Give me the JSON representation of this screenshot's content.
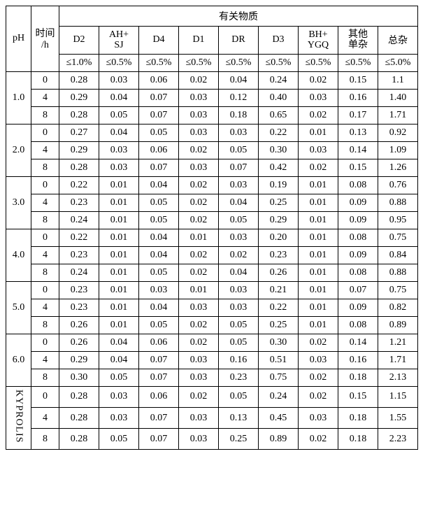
{
  "header": {
    "ph": "pH",
    "time": "时间/h",
    "group": "有关物质",
    "cols": [
      "D2",
      "AH+SJ",
      "D4",
      "D1",
      "DR",
      "D3",
      "BH+YGQ",
      "其他单杂",
      "总杂"
    ],
    "limits": [
      "≤1.0%",
      "≤0.5%",
      "≤0.5%",
      "≤0.5%",
      "≤0.5%",
      "≤0.5%",
      "≤0.5%",
      "≤0.5%",
      "≤5.0%"
    ]
  },
  "groups": [
    {
      "label": "1.0",
      "rows": [
        {
          "t": "0",
          "v": [
            "0.28",
            "0.03",
            "0.06",
            "0.02",
            "0.04",
            "0.24",
            "0.02",
            "0.15",
            "1.1"
          ]
        },
        {
          "t": "4",
          "v": [
            "0.29",
            "0.04",
            "0.07",
            "0.03",
            "0.12",
            "0.40",
            "0.03",
            "0.16",
            "1.40"
          ]
        },
        {
          "t": "8",
          "v": [
            "0.28",
            "0.05",
            "0.07",
            "0.03",
            "0.18",
            "0.65",
            "0.02",
            "0.17",
            "1.71"
          ]
        }
      ]
    },
    {
      "label": "2.0",
      "rows": [
        {
          "t": "0",
          "v": [
            "0.27",
            "0.04",
            "0.05",
            "0.03",
            "0.03",
            "0.22",
            "0.01",
            "0.13",
            "0.92"
          ]
        },
        {
          "t": "4",
          "v": [
            "0.29",
            "0.03",
            "0.06",
            "0.02",
            "0.05",
            "0.30",
            "0.03",
            "0.14",
            "1.09"
          ]
        },
        {
          "t": "8",
          "v": [
            "0.28",
            "0.03",
            "0.07",
            "0.03",
            "0.07",
            "0.42",
            "0.02",
            "0.15",
            "1.26"
          ]
        }
      ]
    },
    {
      "label": "3.0",
      "rows": [
        {
          "t": "0",
          "v": [
            "0.22",
            "0.01",
            "0.04",
            "0.02",
            "0.03",
            "0.19",
            "0.01",
            "0.08",
            "0.76"
          ]
        },
        {
          "t": "4",
          "v": [
            "0.23",
            "0.01",
            "0.05",
            "0.02",
            "0.04",
            "0.25",
            "0.01",
            "0.09",
            "0.88"
          ]
        },
        {
          "t": "8",
          "v": [
            "0.24",
            "0.01",
            "0.05",
            "0.02",
            "0.05",
            "0.29",
            "0.01",
            "0.09",
            "0.95"
          ]
        }
      ]
    },
    {
      "label": "4.0",
      "rows": [
        {
          "t": "0",
          "v": [
            "0.22",
            "0.01",
            "0.04",
            "0.01",
            "0.03",
            "0.20",
            "0.01",
            "0.08",
            "0.75"
          ]
        },
        {
          "t": "4",
          "v": [
            "0.23",
            "0.01",
            "0.04",
            "0.02",
            "0.02",
            "0.23",
            "0.01",
            "0.09",
            "0.84"
          ]
        },
        {
          "t": "8",
          "v": [
            "0.24",
            "0.01",
            "0.05",
            "0.02",
            "0.04",
            "0.26",
            "0.01",
            "0.08",
            "0.88"
          ]
        }
      ]
    },
    {
      "label": "5.0",
      "rows": [
        {
          "t": "0",
          "v": [
            "0.23",
            "0.01",
            "0.03",
            "0.01",
            "0.03",
            "0.21",
            "0.01",
            "0.07",
            "0.75"
          ]
        },
        {
          "t": "4",
          "v": [
            "0.23",
            "0.01",
            "0.04",
            "0.03",
            "0.03",
            "0.22",
            "0.01",
            "0.09",
            "0.82"
          ]
        },
        {
          "t": "8",
          "v": [
            "0.26",
            "0.01",
            "0.05",
            "0.02",
            "0.05",
            "0.25",
            "0.01",
            "0.08",
            "0.89"
          ]
        }
      ]
    },
    {
      "label": "6.0",
      "rows": [
        {
          "t": "0",
          "v": [
            "0.26",
            "0.04",
            "0.06",
            "0.02",
            "0.05",
            "0.30",
            "0.02",
            "0.14",
            "1.21"
          ]
        },
        {
          "t": "4",
          "v": [
            "0.29",
            "0.04",
            "0.07",
            "0.03",
            "0.16",
            "0.51",
            "0.03",
            "0.16",
            "1.71"
          ]
        },
        {
          "t": "8",
          "v": [
            "0.30",
            "0.05",
            "0.07",
            "0.03",
            "0.23",
            "0.75",
            "0.02",
            "0.18",
            "2.13"
          ]
        }
      ]
    },
    {
      "label": "KYPROLIS",
      "vertical": true,
      "rows": [
        {
          "t": "0",
          "v": [
            "0.28",
            "0.03",
            "0.06",
            "0.02",
            "0.05",
            "0.24",
            "0.02",
            "0.15",
            "1.15"
          ]
        },
        {
          "t": "4",
          "v": [
            "0.28",
            "0.03",
            "0.07",
            "0.03",
            "0.13",
            "0.45",
            "0.03",
            "0.18",
            "1.55"
          ]
        },
        {
          "t": "8",
          "v": [
            "0.28",
            "0.05",
            "0.07",
            "0.03",
            "0.25",
            "0.89",
            "0.02",
            "0.18",
            "2.23"
          ]
        }
      ]
    }
  ]
}
